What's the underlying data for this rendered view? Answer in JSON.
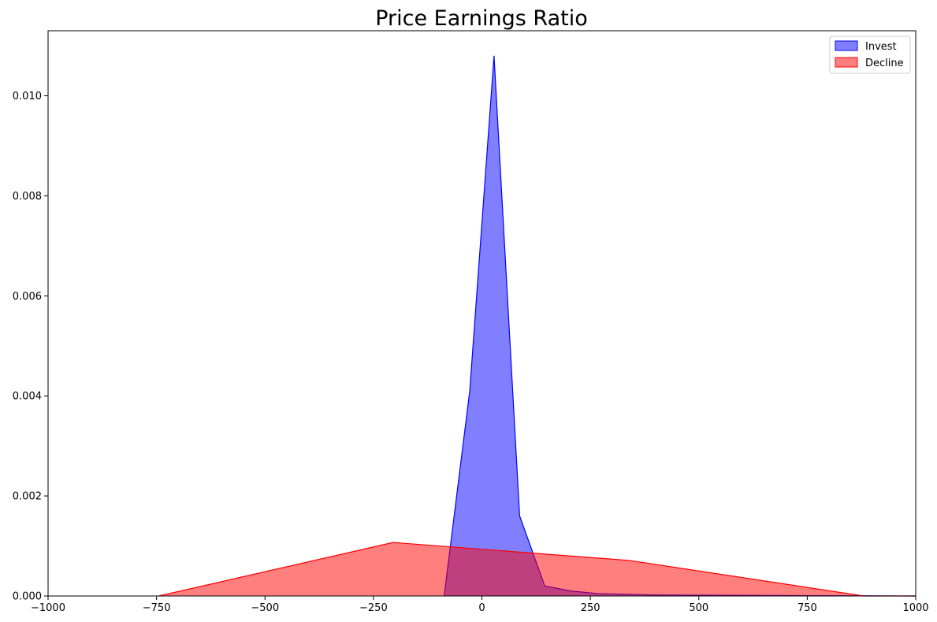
{
  "chart_data": {
    "type": "area",
    "title": "Price Earnings Ratio",
    "xlabel": "",
    "ylabel": "",
    "xlim": [
      -1000,
      1000
    ],
    "ylim": [
      0,
      0.0113
    ],
    "xticks": [
      -1000,
      -750,
      -500,
      -250,
      0,
      250,
      500,
      750,
      1000
    ],
    "xtick_labels": [
      "−1000",
      "−750",
      "−500",
      "−250",
      "0",
      "250",
      "500",
      "750",
      "1000"
    ],
    "yticks": [
      0.0,
      0.002,
      0.004,
      0.006,
      0.008,
      0.01
    ],
    "ytick_labels": [
      "0.000",
      "0.002",
      "0.004",
      "0.006",
      "0.008",
      "0.010"
    ],
    "grid": false,
    "legend_position": "top-right",
    "series": [
      {
        "name": "Invest",
        "color": "#0000ff",
        "fill": "rgba(0,0,255,0.5)",
        "x": [
          -87,
          -28,
          28,
          87,
          145,
          205,
          265,
          400,
          1000
        ],
        "y": [
          0.0,
          0.0041,
          0.0108,
          0.0016,
          0.0002,
          0.0001,
          5e-05,
          2e-05,
          0.0
        ]
      },
      {
        "name": "Decline",
        "color": "#ff0000",
        "fill": "rgba(255,0,0,0.5)",
        "x": [
          -745,
          -205,
          340,
          880,
          1000
        ],
        "y": [
          0.0,
          0.00107,
          0.00071,
          0.0,
          0.0
        ]
      }
    ]
  }
}
